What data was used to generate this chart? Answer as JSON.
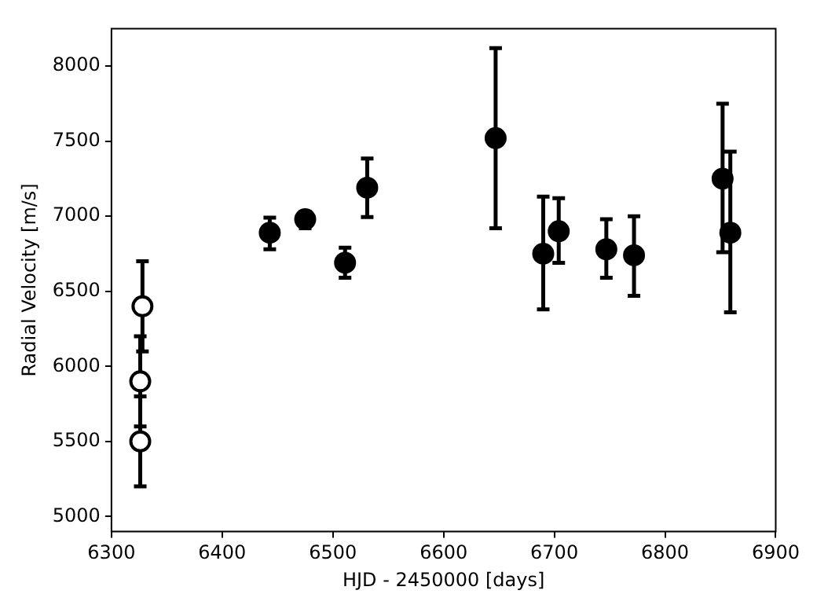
{
  "chart_data": {
    "type": "scatter",
    "xlabel": "HJD - 2450000 [days]",
    "ylabel": "Radial Velocity [m/s]",
    "xlim": [
      6300,
      6900
    ],
    "xticks": [
      6300,
      6400,
      6500,
      6600,
      6700,
      6800,
      6900
    ],
    "ylim": [
      4900,
      8250
    ],
    "yticks": [
      5000,
      5500,
      6000,
      6500,
      7000,
      7500,
      8000
    ],
    "grid": false,
    "legend": false,
    "marker": "circle",
    "series": [
      {
        "color": "#ffffff",
        "x": [
          6328,
          6326,
          6326
        ],
        "values": [
          6400,
          5900,
          5500
        ],
        "errors": [
          [
            6100,
            6700
          ],
          [
            5600,
            6200
          ],
          [
            5200,
            5800
          ]
        ]
      },
      {
        "color": "#000000",
        "x": [
          6443,
          6475,
          6511,
          6531,
          6647,
          6690,
          6704,
          6747,
          6772,
          6852,
          6859
        ],
        "values": [
          6890,
          6980,
          6690,
          7190,
          7520,
          6750,
          6900,
          6780,
          6740,
          7250,
          6890
        ],
        "errors": [
          [
            6780,
            6990
          ],
          [
            6920,
            7030
          ],
          [
            6590,
            6790
          ],
          [
            6995,
            7385
          ],
          [
            6920,
            8120
          ],
          [
            6380,
            7130
          ],
          [
            6690,
            7120
          ],
          [
            6590,
            6980
          ],
          [
            6470,
            7000
          ],
          [
            6760,
            7750
          ],
          [
            6360,
            7430
          ]
        ]
      }
    ]
  }
}
